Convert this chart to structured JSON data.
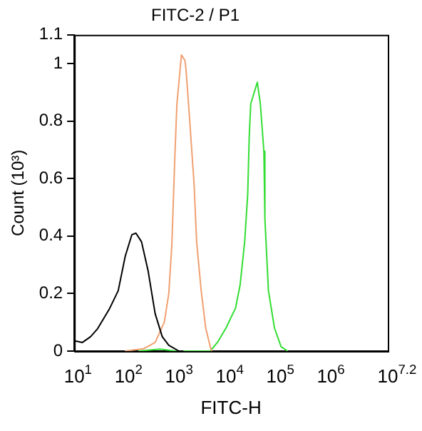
{
  "chart_data": {
    "type": "line",
    "title": "FITC-2 / P1",
    "xlabel": "FITC-H",
    "ylabel": "Count (10³)",
    "log": "x",
    "grid": false,
    "legend": false,
    "marker": "none",
    "line_style": "solid",
    "xlim": [
      10,
      15848932
    ],
    "xticks": [
      {
        "value": 10,
        "label": "10$^{1}$"
      },
      {
        "value": 100,
        "label": "10$^{2}$"
      },
      {
        "value": 1000,
        "label": "10$^{3}$"
      },
      {
        "value": 10000,
        "label": "10$^{4}$"
      },
      {
        "value": 100000,
        "label": "10$^{5}$"
      },
      {
        "value": 1000000,
        "label": "10$^{6}$"
      },
      {
        "value": 15848932,
        "label": "10$^{7.2}$"
      }
    ],
    "ylim": [
      0,
      1.1
    ],
    "yticks": [
      0,
      0.2,
      0.4,
      0.6,
      0.8,
      1,
      1.1
    ],
    "series": [
      {
        "color": "#000000",
        "x": [
          10,
          14.5,
          21,
          29,
          49,
          74,
          102,
          138,
          166,
          214,
          288,
          398,
          550,
          741,
          1175,
          1445
        ],
        "values": [
          0.036,
          0.03,
          0.05,
          0.078,
          0.145,
          0.21,
          0.33,
          0.405,
          0.41,
          0.38,
          0.28,
          0.13,
          0.05,
          0.02,
          0,
          0
        ]
      },
      {
        "color": "#f0a070",
        "x": [
          100,
          234,
          398,
          603,
          741,
          851,
          977,
          1072,
          1318,
          1549,
          1622,
          1905,
          2344,
          2630,
          3236,
          3981,
          4898,
          5248
        ],
        "values": [
          0,
          0.008,
          0.03,
          0.1,
          0.2,
          0.37,
          0.68,
          0.86,
          1.03,
          1.01,
          0.98,
          0.81,
          0.58,
          0.38,
          0.21,
          0.08,
          0.015,
          0
        ]
      },
      {
        "color": "#33dd33",
        "x": [
          186,
          501,
          1000,
          4898,
          6761,
          10000,
          15488,
          19055,
          23442,
          26915,
          28840,
          30903,
          41687,
          47863,
          56234,
          58884,
          69183,
          91201,
          123027,
          165959
        ],
        "values": [
          0,
          0.007,
          0,
          0,
          0.03,
          0.08,
          0.15,
          0.23,
          0.38,
          0.545,
          0.745,
          0.86,
          0.935,
          0.86,
          0.695,
          0.46,
          0.21,
          0.08,
          0.015,
          0
        ]
      }
    ]
  }
}
